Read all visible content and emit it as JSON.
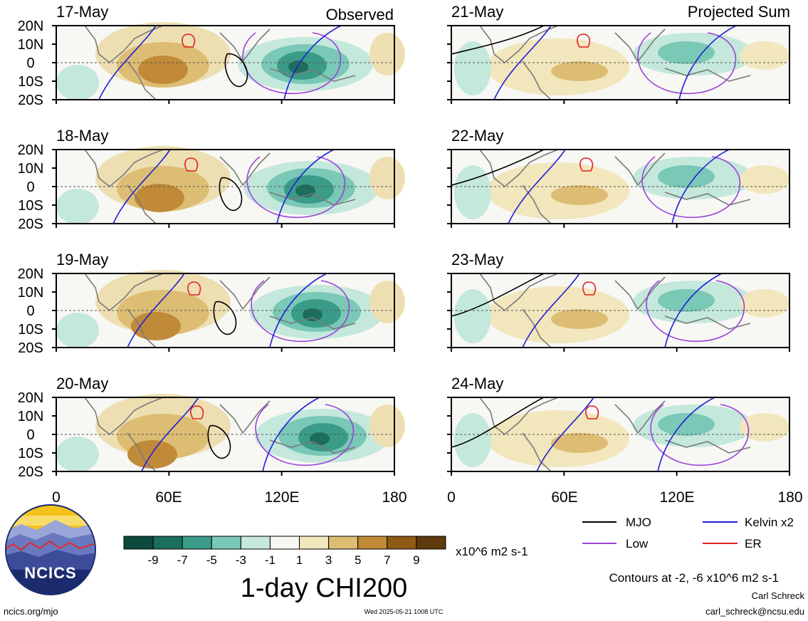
{
  "header": {
    "left_column_label": "Observed",
    "right_column_label": "Projected Sum"
  },
  "panels": [
    {
      "date": "17-May",
      "column": "observed",
      "row": 0
    },
    {
      "date": "18-May",
      "column": "observed",
      "row": 1
    },
    {
      "date": "19-May",
      "column": "observed",
      "row": 2
    },
    {
      "date": "20-May",
      "column": "observed",
      "row": 3
    },
    {
      "date": "21-May",
      "column": "projected",
      "row": 0
    },
    {
      "date": "22-May",
      "column": "projected",
      "row": 1
    },
    {
      "date": "23-May",
      "column": "projected",
      "row": 2
    },
    {
      "date": "24-May",
      "column": "projected",
      "row": 3
    }
  ],
  "axes": {
    "lat_labels": [
      "20N",
      "10N",
      "0",
      "10S",
      "20S"
    ],
    "lon_labels": [
      "0",
      "60E",
      "120E",
      "180"
    ]
  },
  "legend": {
    "items": [
      {
        "label": "MJO",
        "color": "#000000"
      },
      {
        "label": "Kelvin x2",
        "color": "#1f1fd6"
      },
      {
        "label": "Low",
        "color": "#9a40d8"
      },
      {
        "label": "ER",
        "color": "#e02020"
      }
    ],
    "contour_note": "Contours at -2, -6 x10^6 m2 s-1"
  },
  "colorbar": {
    "tick_labels": [
      "-9",
      "-7",
      "-5",
      "-3",
      "-1",
      "1",
      "3",
      "5",
      "7",
      "9"
    ],
    "colors": [
      "#0b4a3c",
      "#1b6e5c",
      "#3a9c88",
      "#7ac8b6",
      "#c4e8dc",
      "#f6f6f2",
      "#f2e6bc",
      "#ddbd73",
      "#c08a38",
      "#8f5a16",
      "#5e3a0c"
    ],
    "units": "x10^6 m2 s-1",
    "title": "1-day CHI200"
  },
  "footer": {
    "website": "ncics.org/mjo",
    "timestamp": "Wed 2025-05-21 1008 UTC",
    "author": "Carl Schreck",
    "email": "carl_schreck@ncsu.edu"
  },
  "logo": {
    "text": "NCICS"
  }
}
